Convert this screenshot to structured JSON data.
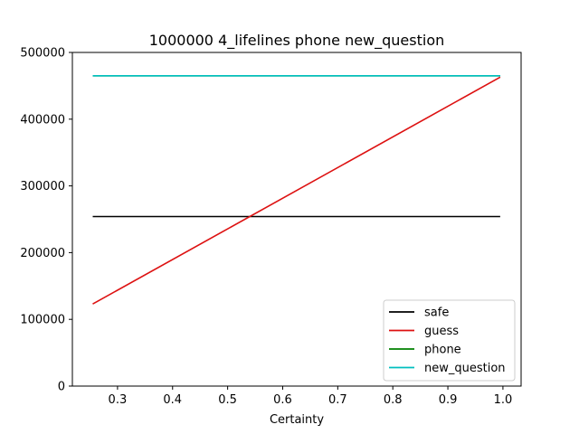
{
  "chart_data": {
    "type": "line",
    "title": "1000000 4_lifelines phone new_question",
    "xlabel": "Certainty",
    "ylabel": "",
    "xlim": [
      0.218,
      1.033
    ],
    "ylim": [
      0,
      500000
    ],
    "xticks": [
      0.3,
      0.4,
      0.5,
      0.6,
      0.7,
      0.8,
      0.9,
      1.0
    ],
    "xtick_labels": [
      "0.3",
      "0.4",
      "0.5",
      "0.6",
      "0.7",
      "0.8",
      "0.9",
      "1.0"
    ],
    "yticks": [
      0,
      100000,
      200000,
      300000,
      400000,
      500000
    ],
    "ytick_labels": [
      "0",
      "100000",
      "200000",
      "300000",
      "400000",
      "500000"
    ],
    "grid": false,
    "legend_position": "lower-right",
    "series": [
      {
        "name": "safe",
        "color": "#000000",
        "x": [
          0.255,
          0.995
        ],
        "y": [
          254000,
          254000
        ]
      },
      {
        "name": "guess",
        "color": "#dd1111",
        "x": [
          0.255,
          0.995
        ],
        "y": [
          123000,
          463000
        ]
      },
      {
        "name": "phone",
        "color": "#008000",
        "x": [
          0.255,
          0.995
        ],
        "y": [
          465000,
          465000
        ]
      },
      {
        "name": "new_question",
        "color": "#00bfbf",
        "x": [
          0.255,
          0.995
        ],
        "y": [
          465000,
          465000
        ]
      }
    ]
  }
}
